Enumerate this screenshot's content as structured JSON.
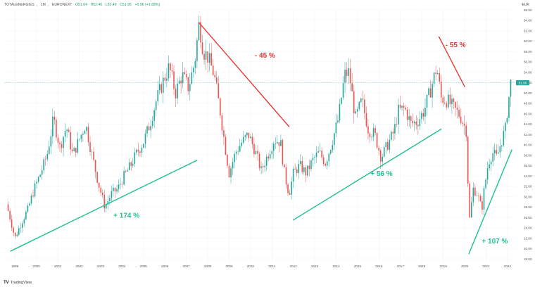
{
  "header": {
    "symbol": "TOTALENERGIES",
    "interval": "1M",
    "exchange": "EURONEXT",
    "open": "O51.04",
    "high": "H52.46",
    "low": "L50.49",
    "close": "C51.95",
    "change": "+0.96 (+1.88%)",
    "currency": "EUR"
  },
  "brand": {
    "logo": "TV",
    "name": "TradingView"
  },
  "colors": {
    "up": "#26a69a",
    "down": "#ef5350",
    "trend_up": "#1fbf8f",
    "trend_down": "#e53935",
    "price_line": "#7fd3c7",
    "price_tag": "#26a69a",
    "grid": "#f0f3fa",
    "axis_text": "#555555"
  },
  "chart_data": {
    "type": "candlestick",
    "title": "TOTALENERGIES, 1M, EURONEXT",
    "price_scale": {
      "min": 18,
      "max": 66,
      "unit": "EUR"
    },
    "time_range": [
      1998.5,
      2022.2
    ],
    "y_ticks": [
      "18.00",
      "20.00",
      "22.00",
      "24.00",
      "26.00",
      "28.00",
      "30.00",
      "32.00",
      "34.00",
      "36.00",
      "38.00",
      "40.00",
      "42.00",
      "44.00",
      "46.00",
      "48.00",
      "50.00",
      "52.00",
      "54.00",
      "56.00",
      "58.00",
      "60.00",
      "62.00",
      "64.00",
      "66.00"
    ],
    "x_ticks": [
      "1999",
      "2000",
      "2001",
      "2002",
      "2003",
      "2004",
      "2005",
      "2006",
      "2007",
      "2008",
      "2009",
      "2010",
      "2011",
      "2012",
      "2013",
      "2014",
      "2015",
      "2016",
      "2017",
      "2018",
      "2019",
      "2020",
      "2021",
      "2022"
    ],
    "last_price": 51.95,
    "last_price_label": "51.95",
    "close_series": [
      [
        1998.6,
        28.5
      ],
      [
        1998.8,
        25.5
      ],
      [
        1999.0,
        22.0
      ],
      [
        1999.3,
        25.0
      ],
      [
        1999.6,
        27.5
      ],
      [
        1999.9,
        31.5
      ],
      [
        2000.2,
        34.5
      ],
      [
        2000.5,
        38.0
      ],
      [
        2000.8,
        45.0
      ],
      [
        2001.1,
        39.5
      ],
      [
        2001.4,
        43.5
      ],
      [
        2001.7,
        38.0
      ],
      [
        2002.0,
        41.0
      ],
      [
        2002.3,
        44.0
      ],
      [
        2002.6,
        38.0
      ],
      [
        2002.9,
        32.5
      ],
      [
        2003.2,
        28.0
      ],
      [
        2003.5,
        30.5
      ],
      [
        2003.8,
        31.5
      ],
      [
        2004.1,
        34.0
      ],
      [
        2004.4,
        36.0
      ],
      [
        2004.7,
        38.5
      ],
      [
        2005.0,
        40.5
      ],
      [
        2005.3,
        44.0
      ],
      [
        2005.6,
        48.5
      ],
      [
        2005.9,
        52.0
      ],
      [
        2006.2,
        55.0
      ],
      [
        2006.5,
        50.0
      ],
      [
        2006.8,
        53.5
      ],
      [
        2007.1,
        51.0
      ],
      [
        2007.4,
        56.0
      ],
      [
        2007.6,
        63.5
      ],
      [
        2007.8,
        58.0
      ],
      [
        2008.0,
        57.0
      ],
      [
        2008.3,
        53.5
      ],
      [
        2008.6,
        46.0
      ],
      [
        2008.8,
        40.0
      ],
      [
        2009.0,
        34.5
      ],
      [
        2009.3,
        38.5
      ],
      [
        2009.6,
        40.5
      ],
      [
        2009.9,
        42.0
      ],
      [
        2010.2,
        39.0
      ],
      [
        2010.5,
        35.0
      ],
      [
        2010.8,
        38.0
      ],
      [
        2011.1,
        41.0
      ],
      [
        2011.4,
        40.5
      ],
      [
        2011.6,
        34.0
      ],
      [
        2011.8,
        30.5
      ],
      [
        2012.0,
        34.5
      ],
      [
        2012.3,
        36.0
      ],
      [
        2012.6,
        34.5
      ],
      [
        2012.9,
        37.0
      ],
      [
        2013.2,
        38.5
      ],
      [
        2013.5,
        36.5
      ],
      [
        2013.8,
        40.5
      ],
      [
        2014.1,
        45.0
      ],
      [
        2014.4,
        53.5
      ],
      [
        2014.6,
        54.0
      ],
      [
        2014.9,
        45.0
      ],
      [
        2015.2,
        48.5
      ],
      [
        2015.5,
        43.0
      ],
      [
        2015.8,
        42.0
      ],
      [
        2016.1,
        37.5
      ],
      [
        2016.4,
        40.0
      ],
      [
        2016.7,
        42.5
      ],
      [
        2016.9,
        46.5
      ],
      [
        2017.2,
        47.0
      ],
      [
        2017.5,
        44.0
      ],
      [
        2017.8,
        44.5
      ],
      [
        2018.1,
        46.5
      ],
      [
        2018.4,
        50.5
      ],
      [
        2018.7,
        55.0
      ],
      [
        2018.9,
        49.0
      ],
      [
        2019.2,
        48.5
      ],
      [
        2019.5,
        47.0
      ],
      [
        2019.8,
        45.5
      ],
      [
        2020.1,
        42.5
      ],
      [
        2020.2,
        24.5
      ],
      [
        2020.4,
        31.5
      ],
      [
        2020.6,
        30.5
      ],
      [
        2020.8,
        27.5
      ],
      [
        2020.9,
        31.0
      ],
      [
        2021.1,
        36.5
      ],
      [
        2021.3,
        38.5
      ],
      [
        2021.5,
        37.5
      ],
      [
        2021.7,
        40.5
      ],
      [
        2021.9,
        43.0
      ],
      [
        2022.0,
        47.0
      ],
      [
        2022.15,
        51.95
      ]
    ],
    "trend_lines": [
      {
        "label": "+ 174 %",
        "direction": "up",
        "from": [
          1998.8,
          19.5
        ],
        "to": [
          2007.5,
          37.0
        ],
        "label_at": [
          2003.6,
          25.9
        ]
      },
      {
        "label": "- 45 %",
        "direction": "down",
        "from": [
          2007.6,
          63.5
        ],
        "to": [
          2011.8,
          43.5
        ],
        "label_at": [
          2010.2,
          56.8
        ]
      },
      {
        "label": "+ 56 %",
        "direction": "up",
        "from": [
          2012.0,
          25.5
        ],
        "to": [
          2018.9,
          43.0
        ],
        "label_at": [
          2015.6,
          34.0
        ]
      },
      {
        "label": "- 55 %",
        "direction": "down",
        "from": [
          2018.8,
          60.8
        ],
        "to": [
          2020.0,
          51.2
        ],
        "label_at": [
          2019.1,
          58.8
        ]
      },
      {
        "label": "+ 107 %",
        "direction": "up",
        "from": [
          2020.2,
          19.0
        ],
        "to": [
          2022.2,
          39.0
        ],
        "label_at": [
          2020.8,
          21.0
        ]
      }
    ]
  }
}
